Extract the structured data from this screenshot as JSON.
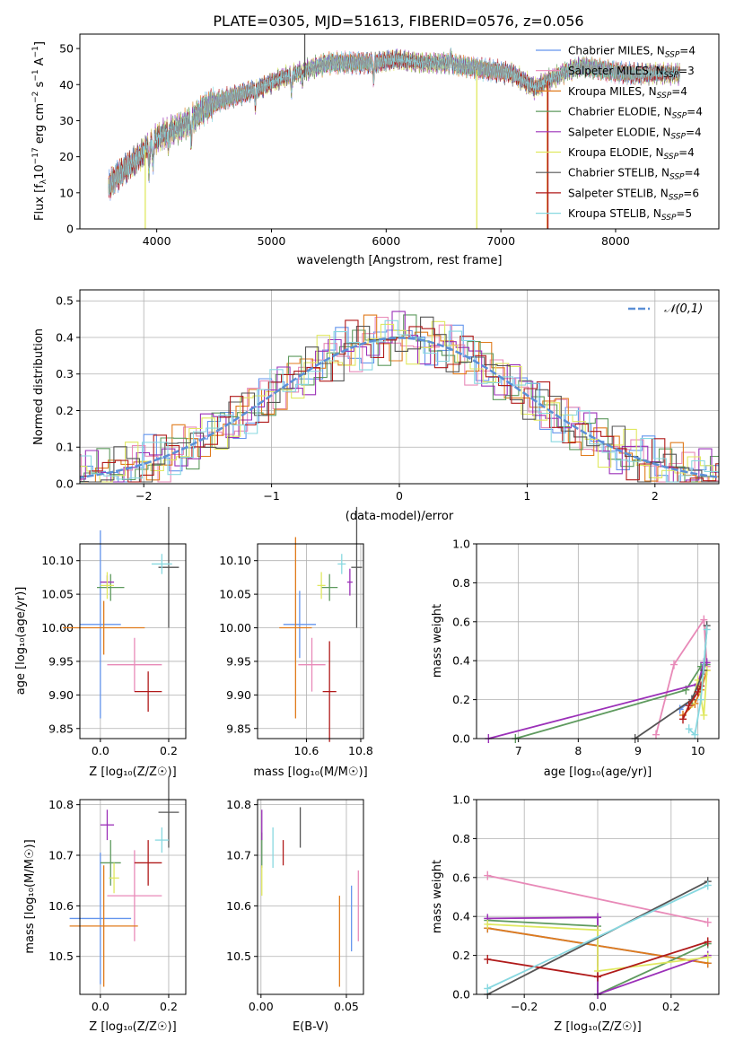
{
  "figure": {
    "title": "PLATE=0305, MJD=51613, FIBERID=0576, z=0.056"
  },
  "series_colors": {
    "Chabrier MILES": "#6495ed",
    "Salpeter MILES": "#e88ab8",
    "Kroupa MILES": "#e07b1c",
    "Chabrier ELODIE": "#5e9a5e",
    "Salpeter ELODIE": "#9b30b8",
    "Kroupa ELODIE": "#e0e860",
    "Chabrier STELIB": "#555555",
    "Salpeter STELIB": "#b01a1a",
    "Kroupa STELIB": "#88d8e0"
  },
  "chart_data": [
    {
      "id": "spectrum",
      "type": "line",
      "xlabel": "wavelength [Angstrom, rest frame]",
      "ylabel": "Flux [f_λ 10⁻¹⁷ erg cm⁻² s⁻¹ A⁻¹]",
      "xlim": [
        3330,
        8900
      ],
      "ylim": [
        0,
        54
      ],
      "xticks": [
        4000,
        5000,
        6000,
        7000,
        8000
      ],
      "yticks": [
        0,
        10,
        20,
        30,
        40,
        50
      ],
      "legend_position": "right",
      "legend": [
        {
          "text": "Chabrier MILES, N_SSP=4",
          "label": "Chabrier MILES, N",
          "sub": "SSP",
          "suffix": "=4",
          "series": "Chabrier MILES"
        },
        {
          "text": "Salpeter MILES, N_SSP=3",
          "label": "Salpeter MILES, N",
          "sub": "SSP",
          "suffix": "=3",
          "series": "Salpeter MILES"
        },
        {
          "text": "Kroupa MILES, N_SSP=4",
          "label": "Kroupa MILES, N",
          "sub": "SSP",
          "suffix": "=4",
          "series": "Kroupa MILES"
        },
        {
          "text": "Chabrier ELODIE, N_SSP=4",
          "label": "Chabrier ELODIE, N",
          "sub": "SSP",
          "suffix": "=4",
          "series": "Chabrier ELODIE"
        },
        {
          "text": "Salpeter ELODIE, N_SSP=4",
          "label": "Salpeter ELODIE, N",
          "sub": "SSP",
          "suffix": "=4",
          "series": "Salpeter ELODIE"
        },
        {
          "text": "Kroupa ELODIE, N_SSP=4",
          "label": "Kroupa ELODIE, N",
          "sub": "SSP",
          "suffix": "=4",
          "series": "Kroupa ELODIE"
        },
        {
          "text": "Chabrier STELIB, N_SSP=4",
          "label": "Chabrier STELIB, N",
          "sub": "SSP",
          "suffix": "=4",
          "series": "Chabrier STELIB"
        },
        {
          "text": "Salpeter STELIB, N_SSP=6",
          "label": "Salpeter STELIB, N",
          "sub": "SSP",
          "suffix": "=6",
          "series": "Salpeter STELIB"
        },
        {
          "text": "Kroupa STELIB, N_SSP=5",
          "label": "Kroupa STELIB, N",
          "sub": "SSP",
          "suffix": "=5",
          "series": "Kroupa STELIB"
        }
      ],
      "continuum_nodes": [
        [
          3580,
          12
        ],
        [
          3700,
          16
        ],
        [
          3850,
          20
        ],
        [
          3930,
          23
        ],
        [
          4000,
          25
        ],
        [
          4100,
          27
        ],
        [
          4200,
          28
        ],
        [
          4300,
          30
        ],
        [
          4400,
          33
        ],
        [
          4500,
          35
        ],
        [
          4700,
          37
        ],
        [
          4900,
          39
        ],
        [
          5100,
          42
        ],
        [
          5300,
          44
        ],
        [
          5500,
          46
        ],
        [
          5700,
          46
        ],
        [
          5900,
          46
        ],
        [
          6100,
          47
        ],
        [
          6300,
          46
        ],
        [
          6500,
          46
        ],
        [
          6700,
          45
        ],
        [
          6900,
          44
        ],
        [
          7100,
          43
        ],
        [
          7200,
          41
        ],
        [
          7300,
          39
        ],
        [
          7400,
          41
        ],
        [
          7600,
          44
        ],
        [
          7700,
          45
        ],
        [
          7900,
          44
        ],
        [
          8100,
          43
        ],
        [
          8300,
          43
        ],
        [
          8500,
          43
        ],
        [
          8560,
          43
        ]
      ],
      "absorption_features": [
        [
          3934,
          8
        ],
        [
          3969,
          7
        ],
        [
          4102,
          4
        ],
        [
          4300,
          6
        ],
        [
          4861,
          4
        ],
        [
          5175,
          5
        ],
        [
          5270,
          3
        ],
        [
          5890,
          5
        ],
        [
          6563,
          -3
        ]
      ],
      "spikes": [
        {
          "x": 3900,
          "y0": 0,
          "y1": 22,
          "series": "Kroupa ELODIE"
        },
        {
          "x": 5290,
          "y0": 42,
          "y1": 54,
          "series": "Chabrier STELIB"
        },
        {
          "x": 6790,
          "y0": 0,
          "y1": 44,
          "series": "Kroupa ELODIE"
        },
        {
          "x": 7405,
          "y0": 0,
          "y1": 41,
          "series": "Kroupa MILES"
        },
        {
          "x": 7410,
          "y0": 0,
          "y1": 41,
          "series": "Salpeter STELIB"
        }
      ]
    },
    {
      "id": "residual-histogram",
      "type": "step",
      "xlabel": "(data-model)/error",
      "ylabel": "Normed distribution",
      "xlim": [
        -2.5,
        2.5
      ],
      "ylim": [
        0,
        0.53
      ],
      "xticks": [
        -2,
        -1,
        0,
        1,
        2
      ],
      "yticks": [
        0,
        0.1,
        0.2,
        0.3,
        0.4,
        0.5
      ],
      "bin_width": 0.1,
      "legend_position": "top-right",
      "reference_curve": {
        "label": "𝒩(0,1)",
        "mean": 0,
        "sigma": 1,
        "color": "#5b8fd6"
      }
    },
    {
      "id": "age-vs-Z",
      "type": "errorbar",
      "xlabel": "Z [log₁₀(Z/Z☉)]",
      "ylabel": "age  [log₁₀(age/yr)]",
      "xlim": [
        -0.06,
        0.25
      ],
      "ylim": [
        9.835,
        10.125
      ],
      "xticks": [
        0.0,
        0.2
      ],
      "yticks": [
        9.85,
        9.9,
        9.95,
        10.0,
        10.05,
        10.1
      ],
      "points": [
        {
          "series": "Chabrier MILES",
          "x": 0.0,
          "xerr": 0.06,
          "y": 10.005,
          "yerr": 0.14
        },
        {
          "series": "Salpeter MILES",
          "x": 0.1,
          "xerr": 0.08,
          "y": 9.945,
          "yerr": 0.04
        },
        {
          "series": "Kroupa MILES",
          "x": 0.01,
          "xerr": 0.12,
          "y": 10.0,
          "yerr": 0.04
        },
        {
          "series": "Chabrier ELODIE",
          "x": 0.03,
          "xerr": 0.04,
          "y": 10.06,
          "yerr": 0.02
        },
        {
          "series": "Salpeter ELODIE",
          "x": 0.02,
          "xerr": 0.02,
          "y": 10.068,
          "yerr": 0.01
        },
        {
          "series": "Kroupa ELODIE",
          "x": 0.02,
          "xerr": 0.02,
          "y": 10.063,
          "yerr": 0.02
        },
        {
          "series": "Chabrier STELIB",
          "x": 0.2,
          "xerr": 0.03,
          "y": 10.09,
          "yerr": 0.09
        },
        {
          "series": "Salpeter STELIB",
          "x": 0.14,
          "xerr": 0.04,
          "y": 9.905,
          "yerr": 0.03
        },
        {
          "series": "Kroupa STELIB",
          "x": 0.18,
          "xerr": 0.03,
          "y": 10.095,
          "yerr": 0.015
        }
      ]
    },
    {
      "id": "age-vs-mass",
      "type": "errorbar",
      "xlabel": "mass [log₁₀(M/M☉)]",
      "ylabel": "",
      "xlim": [
        10.42,
        10.81
      ],
      "ylim": [
        9.835,
        10.125
      ],
      "xticks": [
        10.6,
        10.8
      ],
      "yticks": [
        9.85,
        9.9,
        9.95,
        10.0,
        10.05,
        10.1
      ],
      "points": [
        {
          "series": "Chabrier MILES",
          "x": 10.575,
          "xerr": 0.06,
          "y": 10.005,
          "yerr": 0.05
        },
        {
          "series": "Salpeter MILES",
          "x": 10.62,
          "xerr": 0.05,
          "y": 9.945,
          "yerr": 0.04
        },
        {
          "series": "Kroupa MILES",
          "x": 10.56,
          "xerr": 0.06,
          "y": 10.0,
          "yerr": 0.135
        },
        {
          "series": "Chabrier ELODIE",
          "x": 10.685,
          "xerr": 0.03,
          "y": 10.06,
          "yerr": 0.02
        },
        {
          "series": "Salpeter ELODIE",
          "x": 10.76,
          "xerr": 0.01,
          "y": 10.068,
          "yerr": 0.02
        },
        {
          "series": "Kroupa ELODIE",
          "x": 10.655,
          "xerr": 0.015,
          "y": 10.063,
          "yerr": 0.02
        },
        {
          "series": "Chabrier STELIB",
          "x": 10.785,
          "xerr": 0.02,
          "y": 10.09,
          "yerr": 0.09
        },
        {
          "series": "Salpeter STELIB",
          "x": 10.685,
          "xerr": 0.025,
          "y": 9.905,
          "yerr": 0.075
        },
        {
          "series": "Kroupa STELIB",
          "x": 10.73,
          "xerr": 0.015,
          "y": 10.095,
          "yerr": 0.015
        }
      ]
    },
    {
      "id": "mass-weight-vs-age",
      "type": "line",
      "xlabel": "age  [log₁₀(age/yr)]",
      "ylabel": "mass weight",
      "xlim": [
        6.3,
        10.35
      ],
      "ylim": [
        0,
        1
      ],
      "xticks": [
        7,
        8,
        9,
        10
      ],
      "yticks": [
        0.0,
        0.2,
        0.4,
        0.6,
        0.8,
        1.0
      ],
      "series": [
        {
          "name": "Chabrier MILES",
          "points": [
            [
              9.7,
              0.15
            ],
            [
              9.9,
              0.2
            ],
            [
              10.0,
              0.27
            ],
            [
              10.1,
              0.38
            ]
          ]
        },
        {
          "name": "Salpeter MILES",
          "points": [
            [
              9.3,
              0.02
            ],
            [
              9.6,
              0.38
            ],
            [
              10.1,
              0.61
            ],
            [
              10.15,
              0.37
            ]
          ]
        },
        {
          "name": "Kroupa MILES",
          "points": [
            [
              9.75,
              0.12
            ],
            [
              9.95,
              0.18
            ],
            [
              10.05,
              0.25
            ],
            [
              10.15,
              0.35
            ]
          ]
        },
        {
          "name": "Chabrier ELODIE",
          "points": [
            [
              6.95,
              0.0
            ],
            [
              9.8,
              0.25
            ],
            [
              10.05,
              0.37
            ],
            [
              10.15,
              0.38
            ]
          ]
        },
        {
          "name": "Salpeter ELODIE",
          "points": [
            [
              6.5,
              0.0
            ],
            [
              10.0,
              0.28
            ],
            [
              10.1,
              0.39
            ],
            [
              10.15,
              0.39
            ]
          ]
        },
        {
          "name": "Kroupa ELODIE",
          "points": [
            [
              9.9,
              0.18
            ],
            [
              10.0,
              0.3
            ],
            [
              10.1,
              0.12
            ],
            [
              10.15,
              0.35
            ]
          ]
        },
        {
          "name": "Chabrier STELIB",
          "points": [
            [
              8.95,
              0.0
            ],
            [
              9.9,
              0.2
            ],
            [
              10.1,
              0.35
            ],
            [
              10.15,
              0.58
            ]
          ]
        },
        {
          "name": "Salpeter STELIB",
          "points": [
            [
              9.75,
              0.1
            ],
            [
              9.85,
              0.17
            ],
            [
              10.0,
              0.24
            ],
            [
              10.05,
              0.27
            ]
          ]
        },
        {
          "name": "Kroupa STELIB",
          "points": [
            [
              9.85,
              0.05
            ],
            [
              9.95,
              0.02
            ],
            [
              10.05,
              0.2
            ],
            [
              10.15,
              0.56
            ]
          ]
        }
      ]
    },
    {
      "id": "mass-vs-Z",
      "type": "errorbar",
      "xlabel": "Z [log₁₀(Z/Z☉)]",
      "ylabel": "mass [log₁₀(M/M☉)]",
      "xlim": [
        -0.06,
        0.25
      ],
      "ylim": [
        10.425,
        10.81
      ],
      "xticks": [
        0.0,
        0.2
      ],
      "yticks": [
        10.5,
        10.6,
        10.7,
        10.8
      ],
      "points": [
        {
          "series": "Chabrier MILES",
          "x": 0.0,
          "xerr": 0.09,
          "y": 10.575,
          "yerr": 0.13
        },
        {
          "series": "Salpeter MILES",
          "x": 0.1,
          "xerr": 0.08,
          "y": 10.62,
          "yerr": 0.09
        },
        {
          "series": "Kroupa MILES",
          "x": 0.01,
          "xerr": 0.1,
          "y": 10.56,
          "yerr": 0.12
        },
        {
          "series": "Chabrier ELODIE",
          "x": 0.03,
          "xerr": 0.03,
          "y": 10.685,
          "yerr": 0.045
        },
        {
          "series": "Salpeter ELODIE",
          "x": 0.02,
          "xerr": 0.02,
          "y": 10.76,
          "yerr": 0.03
        },
        {
          "series": "Kroupa ELODIE",
          "x": 0.04,
          "xerr": 0.015,
          "y": 10.655,
          "yerr": 0.03
        },
        {
          "series": "Chabrier STELIB",
          "x": 0.2,
          "xerr": 0.03,
          "y": 10.785,
          "yerr": 0.07
        },
        {
          "series": "Salpeter STELIB",
          "x": 0.14,
          "xerr": 0.04,
          "y": 10.685,
          "yerr": 0.045
        },
        {
          "series": "Kroupa STELIB",
          "x": 0.18,
          "xerr": 0.02,
          "y": 10.73,
          "yerr": 0.025
        }
      ]
    },
    {
      "id": "mass-vs-EBV",
      "type": "errorbar",
      "xlabel": "E(B-V)",
      "ylabel": "",
      "xlim": [
        -0.002,
        0.06
      ],
      "ylim": [
        10.425,
        10.81
      ],
      "xticks": [
        0.0,
        0.05
      ],
      "yticks": [
        10.5,
        10.6,
        10.7,
        10.8
      ],
      "points": [
        {
          "series": "Chabrier MILES",
          "x": 0.053,
          "xerr": 0,
          "y": 10.575,
          "yerr": 0.065
        },
        {
          "series": "Salpeter MILES",
          "x": 0.057,
          "xerr": 0,
          "y": 10.6,
          "yerr": 0.07
        },
        {
          "series": "Kroupa MILES",
          "x": 0.046,
          "xerr": 0,
          "y": 10.53,
          "yerr": 0.09
        },
        {
          "series": "Chabrier ELODIE",
          "x": 0.0005,
          "xerr": 0,
          "y": 10.71,
          "yerr": 0.035
        },
        {
          "series": "Salpeter ELODIE",
          "x": 0.0005,
          "xerr": 0,
          "y": 10.76,
          "yerr": 0.03
        },
        {
          "series": "Kroupa ELODIE",
          "x": 0.0005,
          "xerr": 0,
          "y": 10.65,
          "yerr": 0.03
        },
        {
          "series": "Chabrier STELIB",
          "x": 0.023,
          "xerr": 0,
          "y": 10.755,
          "yerr": 0.04
        },
        {
          "series": "Salpeter STELIB",
          "x": 0.013,
          "xerr": 0,
          "y": 10.705,
          "yerr": 0.025
        },
        {
          "series": "Kroupa STELIB",
          "x": 0.007,
          "xerr": 0,
          "y": 10.715,
          "yerr": 0.04
        }
      ]
    },
    {
      "id": "mass-weight-vs-Z",
      "type": "line",
      "xlabel": "Z [log₁₀(Z/Z☉)]",
      "ylabel": "mass weight",
      "xlim": [
        -0.33,
        0.33
      ],
      "ylim": [
        0,
        1
      ],
      "xticks": [
        -0.2,
        0.0,
        0.2
      ],
      "yticks": [
        0.0,
        0.2,
        0.4,
        0.6,
        0.8,
        1.0
      ],
      "series": [
        {
          "name": "Chabrier MILES",
          "points": [
            [
              -0.3,
              0.34
            ],
            [
              0.3,
              0.16
            ]
          ]
        },
        {
          "name": "Salpeter MILES",
          "points": [
            [
              -0.3,
              0.61
            ],
            [
              0.3,
              0.37
            ]
          ]
        },
        {
          "name": "Kroupa MILES",
          "points": [
            [
              -0.3,
              0.34
            ],
            [
              0.3,
              0.16
            ]
          ]
        },
        {
          "name": "Chabrier ELODIE",
          "points": [
            [
              -0.3,
              0.38
            ],
            [
              0.0,
              0.35
            ],
            [
              0.0,
              0.0
            ],
            [
              0.3,
              0.26
            ]
          ]
        },
        {
          "name": "Salpeter ELODIE",
          "points": [
            [
              -0.3,
              0.39
            ],
            [
              0.0,
              0.395
            ],
            [
              0.0,
              0.0
            ],
            [
              0.3,
              0.2
            ]
          ]
        },
        {
          "name": "Kroupa ELODIE",
          "points": [
            [
              -0.3,
              0.36
            ],
            [
              0.0,
              0.33
            ],
            [
              0.0,
              0.12
            ],
            [
              0.3,
              0.19
            ]
          ]
        },
        {
          "name": "Chabrier STELIB",
          "points": [
            [
              -0.3,
              0.0
            ],
            [
              0.3,
              0.58
            ]
          ]
        },
        {
          "name": "Salpeter STELIB",
          "points": [
            [
              -0.3,
              0.18
            ],
            [
              0.0,
              0.09
            ],
            [
              0.3,
              0.27
            ]
          ]
        },
        {
          "name": "Kroupa STELIB",
          "points": [
            [
              -0.3,
              0.03
            ],
            [
              0.3,
              0.56
            ]
          ]
        }
      ]
    }
  ]
}
